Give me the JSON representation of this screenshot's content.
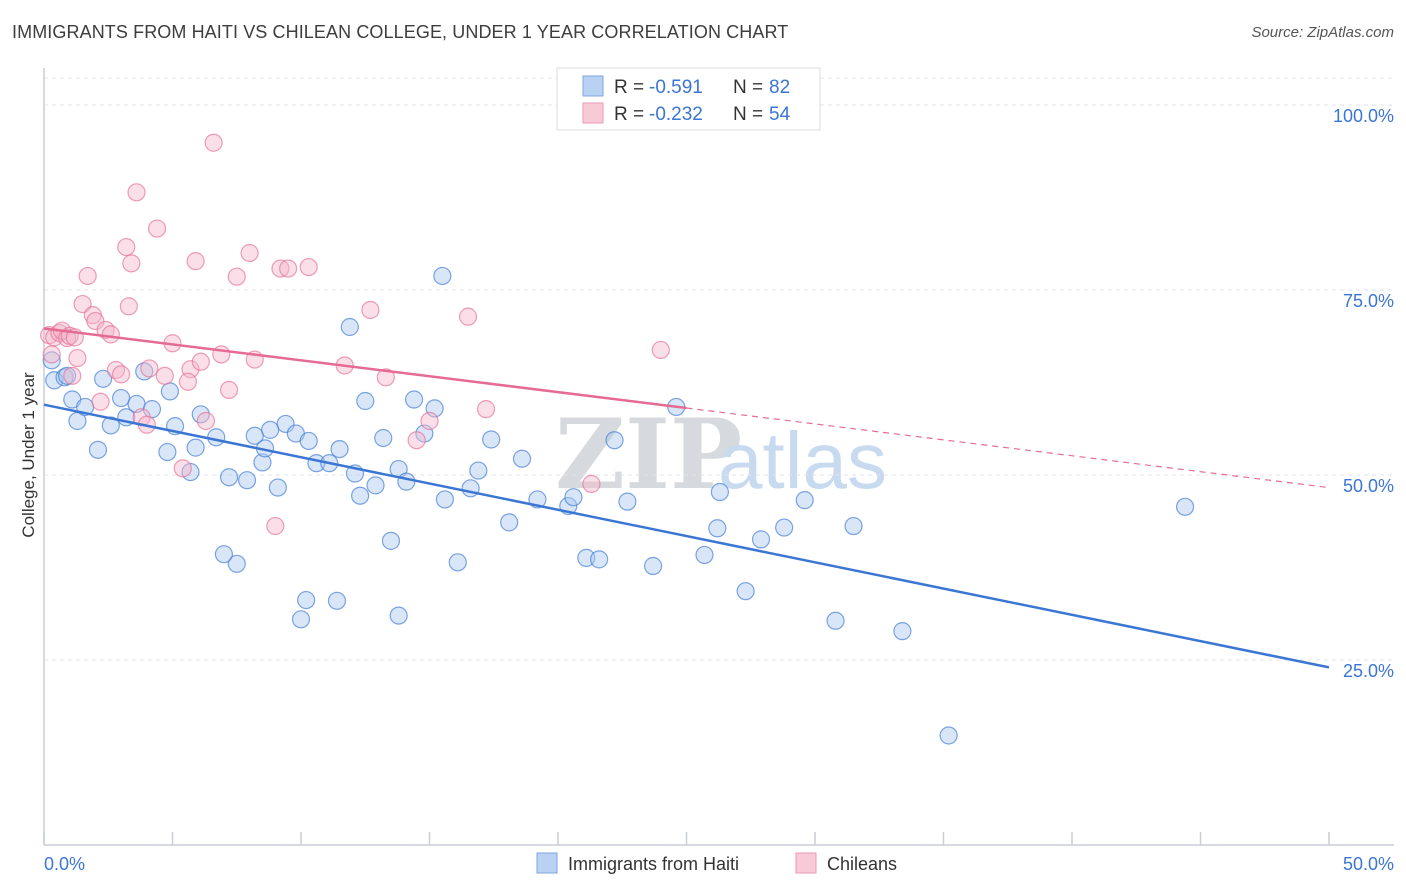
{
  "title": "IMMIGRANTS FROM HAITI VS CHILEAN COLLEGE, UNDER 1 YEAR CORRELATION CHART",
  "source": "Source: ZipAtlas.com",
  "colors": {
    "blue": "#3b76d4",
    "blue_fill": "#a9c8f0",
    "pink": "#e56b93",
    "pink_fill": "#f5b8cb",
    "grid": "#dfe3e8"
  },
  "legend": [
    {
      "r_label": "R =",
      "r_value": "-0.591",
      "n_label": "N =",
      "n_value": "82"
    },
    {
      "r_label": "R =",
      "r_value": "-0.232",
      "n_label": "N =",
      "n_value": "54"
    }
  ],
  "watermark": {
    "zip": "ZIP",
    "atlas": "atlas"
  },
  "chart_data": {
    "type": "scatter",
    "title": "IMMIGRANTS FROM HAITI VS CHILEAN COLLEGE, UNDER 1 YEAR CORRELATION CHART",
    "xlabel": "",
    "ylabel": "College, Under 1 year",
    "xlim": [
      0,
      50
    ],
    "ylim": [
      0,
      105
    ],
    "x_tick_labels": [
      "0.0%",
      "50.0%"
    ],
    "y_ticks": [
      25,
      50,
      75,
      100
    ],
    "y_tick_labels": [
      "25.0%",
      "50.0%",
      "75.0%",
      "100.0%"
    ],
    "grid": true,
    "legend_position": "top-center",
    "series": [
      {
        "name": "Immigrants from Haiti",
        "color": "#3b76d4",
        "trend": {
          "x0": 0,
          "y0": 59.5,
          "x1": 50,
          "y1": 24.0,
          "dashed_from": null
        },
        "points": [
          [
            0.3,
            65.5
          ],
          [
            0.4,
            62.8
          ],
          [
            0.8,
            63.2
          ],
          [
            0.9,
            63.4
          ],
          [
            1.1,
            60.2
          ],
          [
            1.3,
            57.3
          ],
          [
            1.6,
            59.2
          ],
          [
            2.1,
            53.4
          ],
          [
            2.3,
            63.0
          ],
          [
            2.6,
            56.7
          ],
          [
            3.0,
            60.4
          ],
          [
            3.2,
            57.8
          ],
          [
            3.6,
            59.6
          ],
          [
            3.9,
            64.0
          ],
          [
            4.2,
            58.9
          ],
          [
            4.8,
            53.1
          ],
          [
            5.1,
            56.6
          ],
          [
            5.7,
            50.4
          ],
          [
            5.9,
            53.7
          ],
          [
            6.1,
            58.2
          ],
          [
            6.7,
            55.1
          ],
          [
            7.2,
            49.7
          ],
          [
            7.5,
            38.0
          ],
          [
            7.9,
            49.3
          ],
          [
            8.2,
            55.3
          ],
          [
            8.5,
            51.7
          ],
          [
            9.4,
            56.9
          ],
          [
            9.8,
            55.6
          ],
          [
            10.3,
            54.6
          ],
          [
            10.6,
            51.6
          ],
          [
            11.1,
            51.6
          ],
          [
            11.5,
            53.5
          ],
          [
            11.9,
            70.0
          ],
          [
            12.5,
            60.0
          ],
          [
            12.9,
            48.6
          ],
          [
            13.2,
            55.0
          ],
          [
            13.8,
            50.8
          ],
          [
            14.1,
            49.1
          ],
          [
            14.4,
            60.2
          ],
          [
            14.8,
            55.6
          ],
          [
            15.2,
            59.0
          ],
          [
            15.6,
            46.7
          ],
          [
            16.1,
            38.2
          ],
          [
            16.9,
            50.6
          ],
          [
            17.4,
            54.8
          ],
          [
            18.1,
            43.6
          ],
          [
            18.6,
            52.2
          ],
          [
            19.2,
            46.7
          ],
          [
            20.4,
            45.8
          ],
          [
            21.1,
            38.8
          ],
          [
            22.2,
            54.7
          ],
          [
            22.7,
            46.4
          ],
          [
            23.7,
            37.7
          ],
          [
            24.6,
            59.2
          ],
          [
            26.3,
            47.7
          ],
          [
            27.3,
            34.3
          ],
          [
            27.9,
            41.3
          ],
          [
            28.8,
            42.9
          ],
          [
            29.6,
            46.6
          ],
          [
            30.8,
            30.3
          ],
          [
            31.5,
            43.1
          ],
          [
            33.4,
            28.9
          ],
          [
            35.2,
            14.8
          ],
          [
            44.4,
            45.7
          ],
          [
            8.6,
            53.6
          ],
          [
            9.1,
            48.3
          ],
          [
            7.0,
            39.3
          ],
          [
            10.2,
            33.1
          ],
          [
            11.4,
            33.0
          ],
          [
            12.3,
            47.2
          ],
          [
            13.5,
            41.1
          ],
          [
            13.8,
            31.0
          ],
          [
            10.0,
            30.5
          ],
          [
            12.1,
            50.2
          ],
          [
            15.5,
            76.9
          ],
          [
            20.6,
            47.0
          ],
          [
            21.6,
            38.6
          ],
          [
            25.7,
            39.2
          ],
          [
            26.2,
            42.8
          ],
          [
            4.9,
            61.3
          ],
          [
            8.8,
            56.1
          ],
          [
            16.6,
            48.2
          ]
        ]
      },
      {
        "name": "Chileans",
        "color": "#e56b93",
        "trend": {
          "x0": 0,
          "y0": 69.8,
          "x1": 50,
          "y1": 48.3,
          "dashed_from": 25.0
        },
        "points": [
          [
            0.2,
            68.9
          ],
          [
            0.3,
            66.3
          ],
          [
            0.4,
            68.6
          ],
          [
            0.6,
            69.2
          ],
          [
            0.7,
            69.5
          ],
          [
            0.9,
            68.5
          ],
          [
            1.0,
            68.8
          ],
          [
            1.2,
            68.6
          ],
          [
            1.3,
            65.8
          ],
          [
            1.5,
            73.1
          ],
          [
            1.7,
            76.9
          ],
          [
            1.9,
            71.6
          ],
          [
            2.0,
            70.8
          ],
          [
            2.2,
            59.9
          ],
          [
            2.4,
            69.6
          ],
          [
            2.6,
            69.0
          ],
          [
            2.8,
            64.2
          ],
          [
            3.0,
            63.6
          ],
          [
            3.2,
            80.8
          ],
          [
            3.4,
            78.6
          ],
          [
            3.6,
            88.2
          ],
          [
            3.8,
            57.8
          ],
          [
            4.1,
            64.4
          ],
          [
            4.4,
            83.3
          ],
          [
            4.7,
            63.4
          ],
          [
            5.0,
            67.8
          ],
          [
            5.4,
            50.9
          ],
          [
            5.7,
            64.3
          ],
          [
            5.9,
            78.9
          ],
          [
            6.1,
            65.3
          ],
          [
            6.6,
            94.9
          ],
          [
            6.9,
            66.3
          ],
          [
            7.2,
            61.5
          ],
          [
            7.5,
            76.8
          ],
          [
            8.0,
            80.0
          ],
          [
            8.2,
            65.6
          ],
          [
            9.2,
            77.9
          ],
          [
            9.5,
            77.9
          ],
          [
            10.3,
            78.1
          ],
          [
            11.7,
            64.8
          ],
          [
            12.7,
            72.3
          ],
          [
            13.3,
            63.2
          ],
          [
            14.5,
            54.7
          ],
          [
            15.0,
            57.3
          ],
          [
            16.5,
            71.4
          ],
          [
            17.2,
            58.9
          ],
          [
            21.3,
            48.8
          ],
          [
            24.0,
            66.9
          ],
          [
            3.3,
            72.8
          ],
          [
            4.0,
            56.8
          ],
          [
            5.6,
            62.6
          ],
          [
            6.3,
            57.3
          ],
          [
            9.0,
            43.1
          ],
          [
            1.1,
            63.4
          ]
        ]
      }
    ]
  }
}
